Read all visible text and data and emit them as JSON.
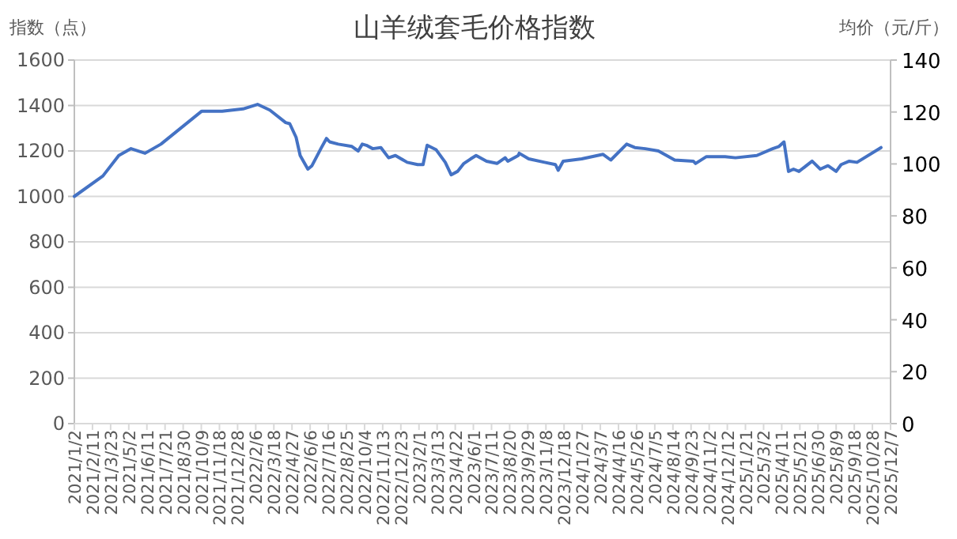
{
  "chart_data": {
    "type": "line",
    "title": "山羊绒套毛价格指数",
    "ylabel": "指数（点）",
    "y2label": "均价（元/斤）",
    "x": [
      "2021-01-02",
      "2021-03-06",
      "2021-04-10",
      "2021-05-07",
      "2021-06-07",
      "2021-07-12",
      "2021-10-10",
      "2021-11-24",
      "2022-01-09",
      "2022-02-10",
      "2022-03-09",
      "2022-04-13",
      "2022-04-22",
      "2022-05-06",
      "2022-05-15",
      "2022-06-01",
      "2022-06-10",
      "2022-07-01",
      "2022-07-12",
      "2022-07-19",
      "2022-08-07",
      "2022-09-06",
      "2022-09-20",
      "2022-09-29",
      "2022-10-08",
      "2022-10-22",
      "2022-11-09",
      "2022-11-26",
      "2022-12-11",
      "2023-01-06",
      "2023-01-29",
      "2023-02-10",
      "2023-02-19",
      "2023-03-11",
      "2023-03-31",
      "2023-04-13",
      "2023-04-27",
      "2023-05-11",
      "2023-05-26",
      "2023-06-07",
      "2023-06-30",
      "2023-07-23",
      "2023-08-10",
      "2023-08-16",
      "2023-09-08",
      "2023-09-10",
      "2023-10-01",
      "2023-11-05",
      "2023-11-29",
      "2023-12-05",
      "2023-12-16",
      "2024-01-26",
      "2024-03-13",
      "2024-03-30",
      "2024-05-04",
      "2024-05-22",
      "2024-06-14",
      "2024-07-13",
      "2024-08-18",
      "2024-09-28",
      "2024-10-03",
      "2024-10-27",
      "2024-12-07",
      "2024-12-30",
      "2025-02-15",
      "2025-03-22",
      "2025-04-05",
      "2025-04-16",
      "2025-04-26",
      "2025-05-07",
      "2025-05-19",
      "2025-06-17",
      "2025-07-05",
      "2025-07-22",
      "2025-08-09",
      "2025-08-20",
      "2025-09-07",
      "2025-09-24",
      "2025-11-16"
    ],
    "series": [
      {
        "color": "#4472c4",
        "values": [
          1000,
          1090,
          1180,
          1210,
          1190,
          1230,
          1375,
          1375,
          1385,
          1405,
          1380,
          1325,
          1320,
          1260,
          1180,
          1120,
          1135,
          1215,
          1255,
          1240,
          1230,
          1220,
          1200,
          1230,
          1225,
          1210,
          1215,
          1170,
          1180,
          1150,
          1140,
          1140,
          1225,
          1205,
          1150,
          1095,
          1110,
          1145,
          1165,
          1180,
          1155,
          1145,
          1170,
          1155,
          1180,
          1190,
          1165,
          1150,
          1140,
          1115,
          1155,
          1165,
          1185,
          1160,
          1230,
          1215,
          1210,
          1200,
          1160,
          1155,
          1145,
          1175,
          1175,
          1170,
          1180,
          1210,
          1220,
          1240,
          1110,
          1120,
          1110,
          1155,
          1120,
          1135,
          1110,
          1140,
          1155,
          1150,
          1215
        ]
      }
    ],
    "xlim": [
      "2021-01-02",
      "2025-12-07"
    ],
    "xticks": [
      {
        "value": "2021-01-02",
        "label": "2021/1/2"
      },
      {
        "value": "2021-02-11",
        "label": "2021/2/11"
      },
      {
        "value": "2021-03-23",
        "label": "2021/3/23"
      },
      {
        "value": "2021-05-02",
        "label": "2021/5/2"
      },
      {
        "value": "2021-06-11",
        "label": "2021/6/11"
      },
      {
        "value": "2021-07-21",
        "label": "2021/7/21"
      },
      {
        "value": "2021-08-30",
        "label": "2021/8/30"
      },
      {
        "value": "2021-10-09",
        "label": "2021/10/9"
      },
      {
        "value": "2021-11-18",
        "label": "2021/11/18"
      },
      {
        "value": "2021-12-28",
        "label": "2021/12/28"
      },
      {
        "value": "2022-02-06",
        "label": "2022/2/6"
      },
      {
        "value": "2022-03-18",
        "label": "2022/3/18"
      },
      {
        "value": "2022-04-27",
        "label": "2022/4/27"
      },
      {
        "value": "2022-06-06",
        "label": "2022/6/6"
      },
      {
        "value": "2022-07-16",
        "label": "2022/7/16"
      },
      {
        "value": "2022-08-25",
        "label": "2022/8/25"
      },
      {
        "value": "2022-10-04",
        "label": "2022/10/4"
      },
      {
        "value": "2022-11-13",
        "label": "2022/11/13"
      },
      {
        "value": "2022-12-23",
        "label": "2022/12/23"
      },
      {
        "value": "2023-02-01",
        "label": "2023/2/1"
      },
      {
        "value": "2023-03-13",
        "label": "2023/3/13"
      },
      {
        "value": "2023-04-22",
        "label": "2023/4/22"
      },
      {
        "value": "2023-06-01",
        "label": "2023/6/1"
      },
      {
        "value": "2023-07-11",
        "label": "2023/7/11"
      },
      {
        "value": "2023-08-20",
        "label": "2023/8/20"
      },
      {
        "value": "2023-09-29",
        "label": "2023/9/29"
      },
      {
        "value": "2023-11-08",
        "label": "2023/11/8"
      },
      {
        "value": "2023-12-18",
        "label": "2023/12/18"
      },
      {
        "value": "2024-01-27",
        "label": "2024/1/27"
      },
      {
        "value": "2024-03-07",
        "label": "2024/3/7"
      },
      {
        "value": "2024-04-16",
        "label": "2024/4/16"
      },
      {
        "value": "2024-05-26",
        "label": "2024/5/26"
      },
      {
        "value": "2024-07-05",
        "label": "2024/7/5"
      },
      {
        "value": "2024-08-14",
        "label": "2024/8/14"
      },
      {
        "value": "2024-09-23",
        "label": "2024/9/23"
      },
      {
        "value": "2024-11-02",
        "label": "2024/11/2"
      },
      {
        "value": "2024-12-12",
        "label": "2024/12/12"
      },
      {
        "value": "2025-01-21",
        "label": "2025/1/21"
      },
      {
        "value": "2025-03-02",
        "label": "2025/3/2"
      },
      {
        "value": "2025-04-11",
        "label": "2025/4/11"
      },
      {
        "value": "2025-05-21",
        "label": "2025/5/21"
      },
      {
        "value": "2025-06-30",
        "label": "2025/6/30"
      },
      {
        "value": "2025-08-09",
        "label": "2025/8/9"
      },
      {
        "value": "2025-09-18",
        "label": "2025/9/18"
      },
      {
        "value": "2025-10-28",
        "label": "2025/10/28"
      },
      {
        "value": "2025-12-07",
        "label": "2025/12/7"
      }
    ],
    "ylim": [
      0,
      1600
    ],
    "yticks": [
      0,
      200,
      400,
      600,
      800,
      1000,
      1200,
      1400,
      1600
    ],
    "y2lim": [
      0,
      140
    ],
    "y2ticks": [
      0,
      20,
      40,
      60,
      80,
      100,
      120,
      140
    ],
    "grid": "y",
    "marker": "none",
    "line_style": "solid"
  }
}
